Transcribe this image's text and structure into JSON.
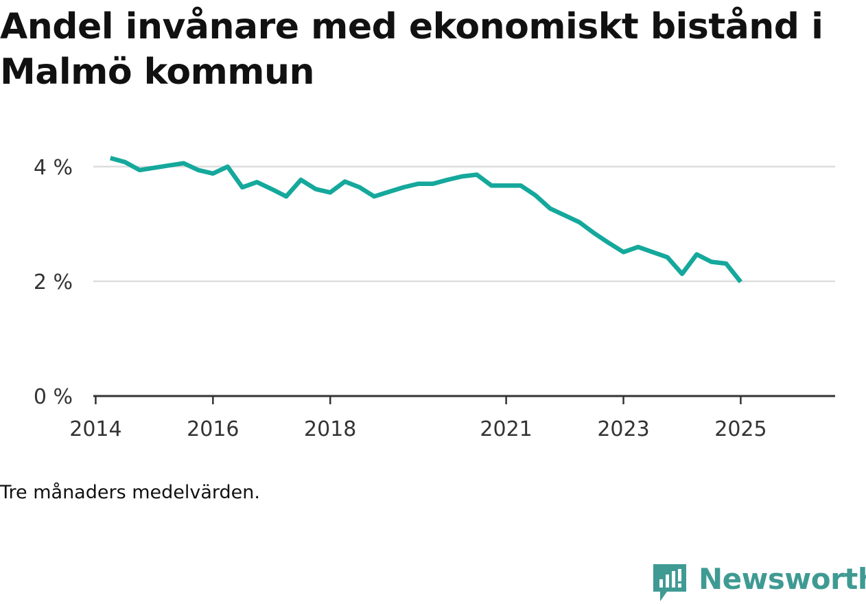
{
  "title": "Andel invånare med ekonomiskt bistånd i Malmö kommun",
  "note": "Tre månaders medelvärden.",
  "brand": {
    "name": "Newsworthy",
    "icon": "newsworthy-logo-icon",
    "color": "#3f9a93"
  },
  "colors": {
    "line": "#15a89c",
    "grid": "#dddddd",
    "axis": "#333333"
  },
  "chart_data": {
    "type": "line",
    "title": "Andel invånare med ekonomiskt bistånd i Malmö kommun",
    "xlabel": "",
    "ylabel": "",
    "ylim": [
      0,
      4.5
    ],
    "y_ticks": [
      {
        "value": 0,
        "label": "0 %"
      },
      {
        "value": 2,
        "label": "2 %"
      },
      {
        "value": 4,
        "label": "4 %"
      }
    ],
    "x_ticks": [
      {
        "value": 2014,
        "label": "2014"
      },
      {
        "value": 2016,
        "label": "2016"
      },
      {
        "value": 2018,
        "label": "2018"
      },
      {
        "value": 2021,
        "label": "2021"
      },
      {
        "value": 2023,
        "label": "2023"
      },
      {
        "value": 2025,
        "label": "2025"
      }
    ],
    "xlim": [
      2013.96,
      2026.61
    ],
    "grid": true,
    "x": [
      2014.25,
      2014.5,
      2014.75,
      2015.0,
      2015.25,
      2015.5,
      2015.75,
      2016.0,
      2016.25,
      2016.5,
      2016.75,
      2017.0,
      2017.25,
      2017.5,
      2017.75,
      2018.0,
      2018.25,
      2018.5,
      2018.75,
      2019.0,
      2019.25,
      2019.5,
      2019.75,
      2020.0,
      2020.25,
      2020.5,
      2020.75,
      2021.0,
      2021.25,
      2021.5,
      2021.75,
      2022.0,
      2022.25,
      2022.5,
      2022.75,
      2023.0,
      2023.25,
      2023.5,
      2023.75,
      2024.0,
      2024.25,
      2024.5,
      2024.75,
      2025.0
    ],
    "series": [
      {
        "values": [
          4.15,
          4.08,
          3.94,
          3.98,
          4.02,
          4.06,
          3.94,
          3.88,
          4.0,
          3.64,
          3.73,
          3.61,
          3.48,
          3.77,
          3.61,
          3.55,
          3.74,
          3.64,
          3.48,
          3.56,
          3.64,
          3.7,
          3.7,
          3.77,
          3.83,
          3.86,
          3.67,
          3.67,
          3.67,
          3.5,
          3.27,
          3.15,
          3.03,
          2.84,
          2.67,
          2.51,
          2.6,
          2.51,
          2.42,
          2.13,
          2.47,
          2.34,
          2.31,
          1.99
        ]
      }
    ]
  }
}
